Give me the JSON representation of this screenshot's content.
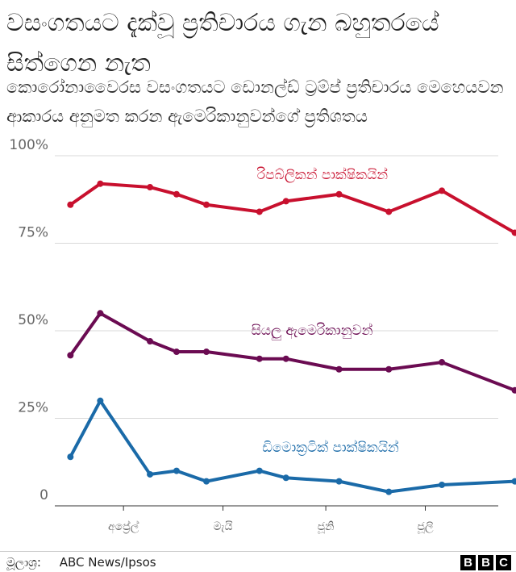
{
  "title": "වසංගතයට දැක්වූ ප්‍රතිචාරය ගැන බහුතරයේ සිත්ගෙන නැත",
  "subtitle": "කොරෝනාවෛරස වසංගතයට ඩොනල්ඩ් ට්‍රම්ප් ප්‍රතිචාරය මෙහෙයවන ආකාරය අනුමත කරන ඇමෙරිකානුවන්ගේ ප්‍රතිශතය",
  "source_label": "මූලාශ්‍ර:",
  "source_text": "ABC News/Ipsos",
  "logo": [
    "B",
    "B",
    "C"
  ],
  "chart_data": {
    "type": "line",
    "y_ticks": [
      {
        "value": 100,
        "label": "100%"
      },
      {
        "value": 75,
        "label": "75%"
      },
      {
        "value": 50,
        "label": "50%"
      },
      {
        "value": 25,
        "label": "25%"
      },
      {
        "value": 0,
        "label": "0"
      }
    ],
    "ylim": [
      0,
      100
    ],
    "x_ticks": [
      {
        "value": "2020-04-01",
        "label": "අප්‍රේල්"
      },
      {
        "value": "2020-05-01",
        "label": "මැයි"
      },
      {
        "value": "2020-06-01",
        "label": "ජූනි"
      },
      {
        "value": "2020-07-01",
        "label": "ජූලි"
      }
    ],
    "xlim": [
      "2020-03-13",
      "2020-07-23"
    ],
    "x": [
      "2020-03-16",
      "2020-03-25",
      "2020-04-09",
      "2020-04-17",
      "2020-04-26",
      "2020-05-12",
      "2020-05-20",
      "2020-06-05",
      "2020-06-20",
      "2020-07-06",
      "2020-07-28"
    ],
    "series": [
      {
        "name": "රිපබ්ලිකන් පාක්ෂිකයින්",
        "color": "#c8102e",
        "values": [
          86,
          92,
          91,
          89,
          86,
          84,
          87,
          89,
          84,
          90,
          78
        ]
      },
      {
        "name": "සියලු ඇමෙරිකානුවන්",
        "color": "#6b0b52",
        "values": [
          43,
          55,
          47,
          44,
          44,
          42,
          42,
          39,
          39,
          41,
          33
        ]
      },
      {
        "name": "ඩිමොක්‍රටික් පාක්ෂිකයින්",
        "color": "#1a6aa8",
        "values": [
          14,
          30,
          9,
          10,
          7,
          10,
          8,
          7,
          4,
          6,
          7
        ]
      }
    ],
    "grid": true
  }
}
